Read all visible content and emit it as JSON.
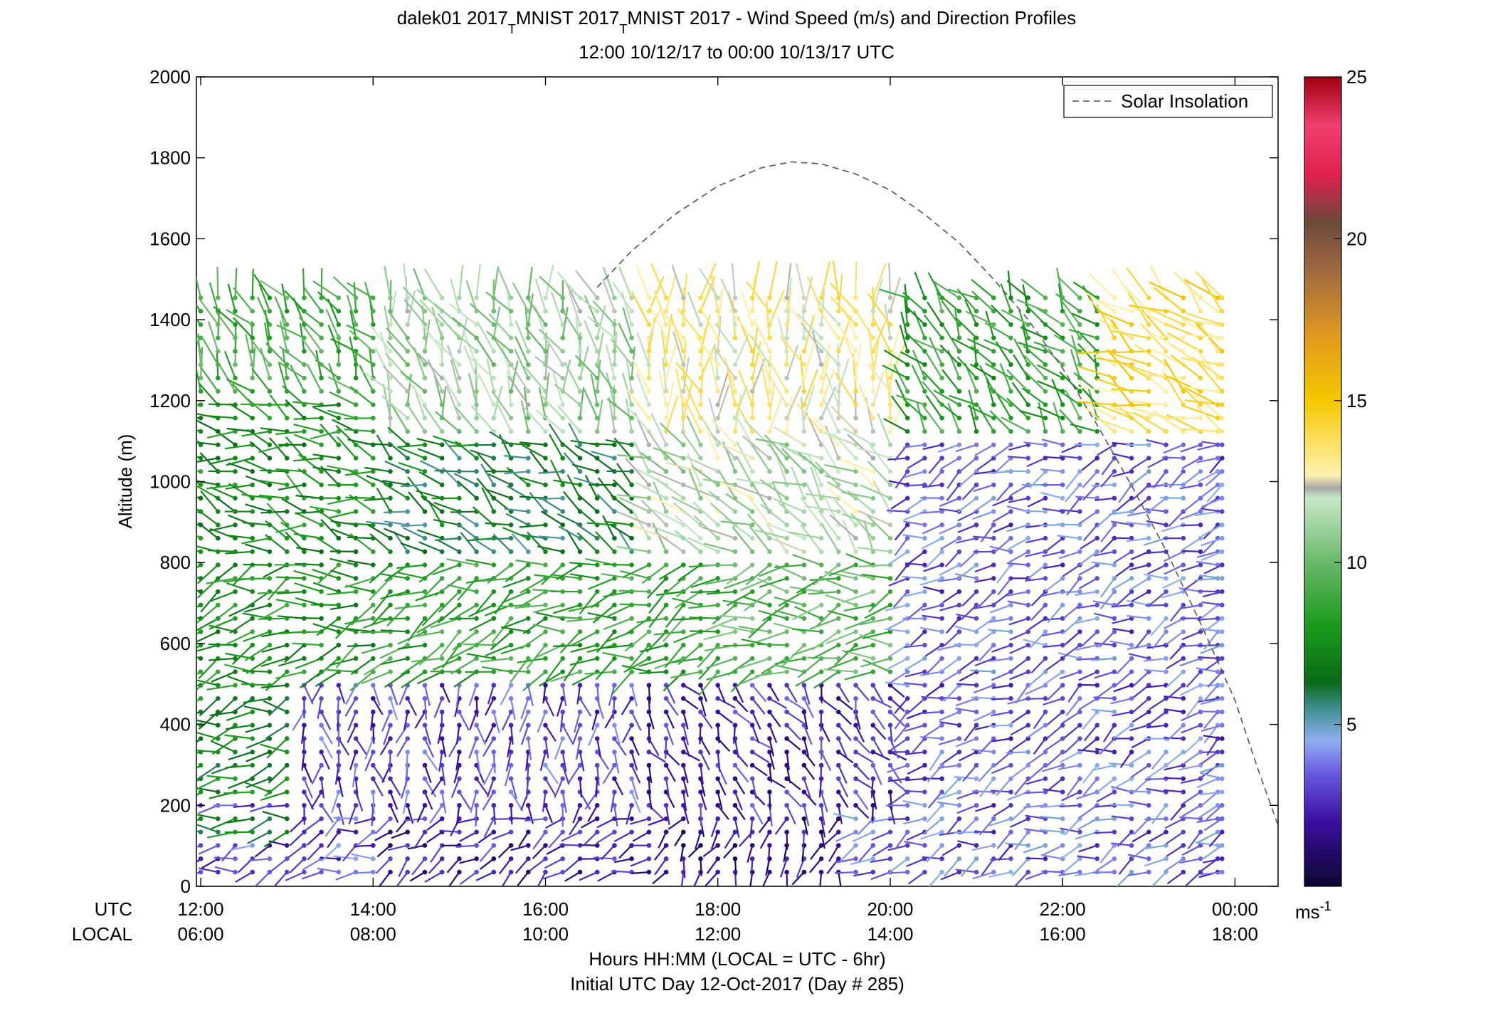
{
  "chart_data": {
    "type": "wind_barb_profile",
    "title": {
      "line1_part1": "dalek01 2017",
      "sub1": "T",
      "line1_part2": "MNIST 2017",
      "sub2": "T",
      "line1_part3": "MNIST 2017 - Wind Speed (m/s) and Direction Profiles",
      "line2": "12:00 10/12/17 to 00:00 10/13/17  UTC"
    },
    "ylabel": "Altitude (m)",
    "ylim": [
      0,
      2000
    ],
    "yticks": [
      0,
      200,
      400,
      600,
      800,
      1000,
      1200,
      1400,
      1600,
      1800,
      2000
    ],
    "xlim_hours": [
      11.95,
      24.5
    ],
    "xticks": [
      {
        "hour": 12,
        "utc": "12:00",
        "local": "06:00"
      },
      {
        "hour": 14,
        "utc": "14:00",
        "local": "08:00"
      },
      {
        "hour": 16,
        "utc": "16:00",
        "local": "10:00"
      },
      {
        "hour": 18,
        "utc": "18:00",
        "local": "12:00"
      },
      {
        "hour": 20,
        "utc": "20:00",
        "local": "14:00"
      },
      {
        "hour": 22,
        "utc": "22:00",
        "local": "16:00"
      },
      {
        "hour": 24,
        "utc": "00:00",
        "local": "18:00"
      }
    ],
    "row_label_utc": "UTC",
    "row_label_local": "LOCAL",
    "xlabel_line1": "Hours HH:MM  (LOCAL = UTC - 6hr)",
    "xlabel_line2": "Initial UTC Day 12-Oct-2017 (Day # 285)",
    "legend": {
      "label": "Solar Insolation",
      "position": "top-right"
    },
    "solar_insolation": {
      "x": [
        16.6,
        17.0,
        17.5,
        18.0,
        18.5,
        18.85,
        19.2,
        19.6,
        20.0,
        20.4,
        20.8,
        21.2,
        21.6,
        22.0,
        22.4,
        22.8,
        23.2,
        23.6,
        24.0,
        24.25,
        24.5
      ],
      "y": [
        1480,
        1570,
        1660,
        1730,
        1775,
        1790,
        1785,
        1760,
        1720,
        1660,
        1590,
        1500,
        1400,
        1280,
        1140,
        990,
        830,
        650,
        460,
        300,
        150
      ]
    },
    "colorbar": {
      "min": 0,
      "max": 25,
      "ticks": [
        5,
        10,
        15,
        20,
        25
      ],
      "unit_base": "ms",
      "unit_exp": "-1",
      "stops": [
        {
          "v": 0,
          "c": "#0d0530"
        },
        {
          "v": 2,
          "c": "#3a0fa0"
        },
        {
          "v": 3.5,
          "c": "#6a5ae0"
        },
        {
          "v": 4.5,
          "c": "#8fb0f0"
        },
        {
          "v": 5.5,
          "c": "#3f8f8f"
        },
        {
          "v": 6.3,
          "c": "#0a6a18"
        },
        {
          "v": 8,
          "c": "#1a9a1a"
        },
        {
          "v": 10,
          "c": "#6ab86a"
        },
        {
          "v": 12,
          "c": "#c8e8c8"
        },
        {
          "v": 12.3,
          "c": "#a8a8a8"
        },
        {
          "v": 12.7,
          "c": "#fff2b0"
        },
        {
          "v": 15,
          "c": "#f5c800"
        },
        {
          "v": 17,
          "c": "#e09a20"
        },
        {
          "v": 19,
          "c": "#a06a40"
        },
        {
          "v": 20.5,
          "c": "#6b4a3a"
        },
        {
          "v": 22,
          "c": "#e02050"
        },
        {
          "v": 23.5,
          "c": "#f04070"
        },
        {
          "v": 25,
          "c": "#a00010"
        }
      ]
    },
    "profiles": {
      "times_start": 12.0,
      "times_end": 23.8,
      "times_step": 0.2,
      "final_profile_time": 23.85,
      "levels_start": 35,
      "levels_end": 1485,
      "levels_step": 33,
      "note_units": "time in UTC hours, altitude in m, speed in m/s, direction in degrees (from)",
      "bands": [
        {
          "t0": 12.0,
          "t1": 14.0,
          "z0": 0,
          "z1": 220,
          "speed": 3.2,
          "dir": 250
        },
        {
          "t0": 12.0,
          "t1": 13.0,
          "z0": 130,
          "z1": 200,
          "speed": 7.0,
          "dir": 255
        },
        {
          "t0": 14.0,
          "t1": 17.5,
          "z0": 0,
          "z1": 200,
          "speed": 2.2,
          "dir": 240
        },
        {
          "t0": 17.5,
          "t1": 19.5,
          "z0": 0,
          "z1": 200,
          "speed": 1.6,
          "dir": 200
        },
        {
          "t0": 19.5,
          "t1": 24.0,
          "z0": 0,
          "z1": 300,
          "speed": 3.6,
          "dir": 250
        },
        {
          "t0": 12.0,
          "t1": 13.8,
          "z0": 220,
          "z1": 500,
          "speed": 7.2,
          "dir": 260
        },
        {
          "t0": 13.0,
          "t1": 17.0,
          "z0": 200,
          "z1": 520,
          "speed": 3.0,
          "dir": 180
        },
        {
          "t0": 17.0,
          "t1": 20.0,
          "z0": 200,
          "z1": 500,
          "speed": 2.4,
          "dir": 150
        },
        {
          "t0": 20.0,
          "t1": 24.0,
          "z0": 300,
          "z1": 500,
          "speed": 3.4,
          "dir": 245
        },
        {
          "t0": 12.0,
          "t1": 14.0,
          "z0": 500,
          "z1": 800,
          "speed": 7.8,
          "dir": 255
        },
        {
          "t0": 14.0,
          "t1": 18.0,
          "z0": 500,
          "z1": 800,
          "speed": 8.5,
          "dir": 250
        },
        {
          "t0": 18.0,
          "t1": 20.0,
          "z0": 500,
          "z1": 800,
          "speed": 9.5,
          "dir": 260
        },
        {
          "t0": 20.0,
          "t1": 24.0,
          "z0": 500,
          "z1": 1100,
          "speed": 3.6,
          "dir": 250
        },
        {
          "t0": 12.0,
          "t1": 14.0,
          "z0": 800,
          "z1": 1200,
          "speed": 7.5,
          "dir": 290
        },
        {
          "t0": 14.0,
          "t1": 17.0,
          "z0": 800,
          "z1": 1100,
          "speed": 6.5,
          "dir": 300
        },
        {
          "t0": 17.0,
          "t1": 20.0,
          "z0": 800,
          "z1": 1100,
          "speed": 11.5,
          "dir": 310
        },
        {
          "t0": 20.0,
          "t1": 22.5,
          "z0": 1100,
          "z1": 1500,
          "speed": 8.5,
          "dir": 320
        },
        {
          "t0": 22.5,
          "t1": 24.0,
          "z0": 1100,
          "z1": 1500,
          "speed": 14.0,
          "dir": 300
        },
        {
          "t0": 12.0,
          "t1": 14.0,
          "z0": 1200,
          "z1": 1500,
          "speed": 9.0,
          "dir": 330
        },
        {
          "t0": 14.0,
          "t1": 17.0,
          "z0": 1100,
          "z1": 1500,
          "speed": 11.0,
          "dir": 340
        },
        {
          "t0": 17.0,
          "t1": 20.0,
          "z0": 1100,
          "z1": 1500,
          "speed": 13.0,
          "dir": 350
        }
      ]
    }
  }
}
